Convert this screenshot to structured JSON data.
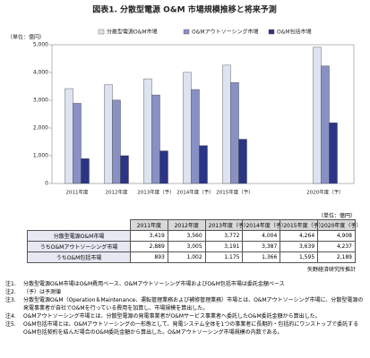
{
  "chart_data": {
    "type": "bar",
    "title": "図表1. 分散型電源 O&M 市場規模推移と将来予測",
    "ylabel": "（単位：億円）",
    "categories": [
      "2011年度",
      "2012年度",
      "2013年度（予）",
      "2014年度（予）",
      "2015年度（予）",
      "2020年度（予）"
    ],
    "series": [
      {
        "name": "分散型電源O&M市場",
        "color": "#dde3f0",
        "values": [
          3419,
          3560,
          3772,
          4004,
          4264,
          4908
        ],
        "value_labels": [
          "3,419",
          "3,560",
          "3,772",
          "4,004",
          "4,264",
          "4,908"
        ]
      },
      {
        "name": "O&Mアウトソーシング市場",
        "color": "#8890c4",
        "values": [
          2889,
          3005,
          3191,
          3387,
          3639,
          4237
        ],
        "value_labels": [
          "2,889",
          "3,005",
          "3,191",
          "3,387",
          "3,639",
          "4,237"
        ]
      },
      {
        "name": "O&M包括市場",
        "color": "#2b3585",
        "values": [
          893,
          1002,
          1175,
          1366,
          1595,
          2189
        ],
        "value_labels": [
          "893",
          "1,002",
          "1,175",
          "1,366",
          "1,595",
          "2,189"
        ]
      }
    ],
    "ylim": [
      0,
      5000
    ],
    "yticks": [
      0,
      {
        "value": 1000,
        "label": "1,000"
      },
      {
        "value": 2000,
        "label": "2,000"
      },
      {
        "value": 3000,
        "label": "3,000"
      },
      {
        "value": 4000,
        "label": "4,000"
      },
      {
        "value": 5000,
        "label": "5,000"
      }
    ],
    "grid": false
  },
  "table": {
    "unit": "（単位：億円）",
    "row_labels": [
      "分散型電源O&M市場",
      "うちO&Mアウトソーシング市場",
      "うちO&M包括市場"
    ],
    "source": "矢野経済研究所推計"
  },
  "notes": [
    {
      "label": "注1.",
      "text": "分散型電源O&M市場はO&M費用ベース、O&Mアウトソーシング市場およびO&M包括市場は委託金額ベース"
    },
    {
      "label": "注2.",
      "text": "（予）は予測値"
    },
    {
      "label": "注3.",
      "text": "分散型電源O&M（Operation＆Maintenance、運転管理業務および補修管理業務）市場とは、O&Mアウトソーシング市場に、分散型電源の発電事業者が自社でO&Mを行っている費用を加算し、市場規模を算出した。"
    },
    {
      "label": "注4.",
      "text": "O&Mアウトソーシング市場とは、分散型電源の発電事業者がO&Mサービス事業者へ委託したO&M委託金額から算出した。"
    },
    {
      "label": "注5.",
      "text": "O&M包括市場とは、O&Mアウトソーシングの一形態として、発電システム全体を1つの事業者に長期的・包括的にワンストップで委託するO&M包括契約を結んだ場合のO&M委託金額から算出した。O&Mアウトソーシング市場規模の内数である。"
    }
  ]
}
